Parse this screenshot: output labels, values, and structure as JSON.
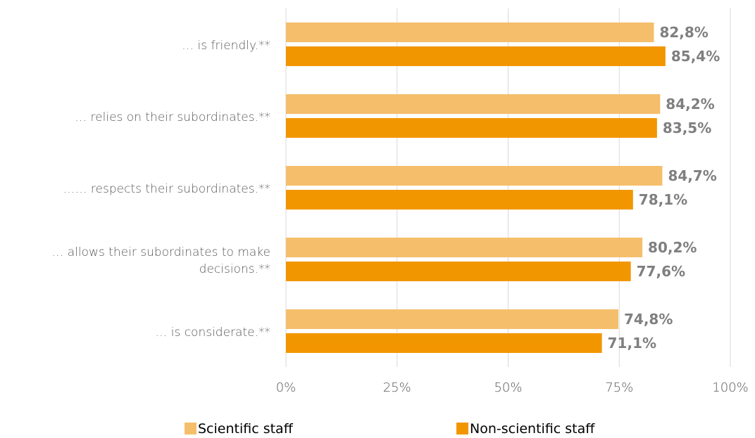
{
  "chart_data": {
    "type": "bar",
    "orientation": "horizontal",
    "categories": [
      [
        "… is friendly.**"
      ],
      [
        "… relies on their subordinates.**"
      ],
      [
        "…… respects their subordinates.**"
      ],
      [
        "… allows their subordinates to make",
        "decisions.**"
      ],
      [
        "… is considerate.**"
      ]
    ],
    "series": [
      {
        "name": "Scientific staff",
        "color": "#F5BE6B",
        "values": [
          82.8,
          84.2,
          84.7,
          80.2,
          74.8
        ],
        "labels": [
          "82,8%",
          "84,2%",
          "84,7%",
          "80,2%",
          "74,8%"
        ]
      },
      {
        "name": "Non-scientific staff",
        "color": "#F29600",
        "values": [
          85.4,
          83.5,
          78.1,
          77.6,
          71.1
        ],
        "labels": [
          "85,4%",
          "83,5%",
          "78,1%",
          "77,6%",
          "71,1%"
        ]
      }
    ],
    "xlim": [
      0,
      100
    ],
    "ticks": [
      0,
      25,
      50,
      75,
      100
    ],
    "tick_labels": [
      "0%",
      "25%",
      "50%",
      "75%",
      "100%"
    ],
    "grid": true,
    "legend_position": "bottom",
    "title": "",
    "xlabel": "",
    "ylabel": ""
  }
}
